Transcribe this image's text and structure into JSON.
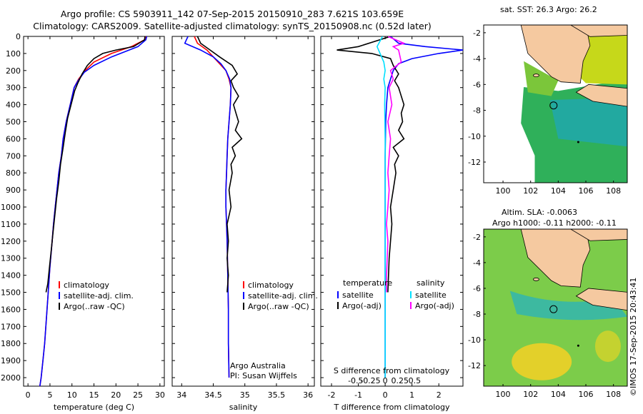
{
  "header": {
    "line1": "Argo profile: CS 5903911_142 07-Sep-2015 20150910_283 7.621S 103.659E",
    "line2": "Climatology: CARS2009. Satellite-adjusted climatology: synTS_20150908.nc (0.52d later)"
  },
  "credit": "©IMOS 17-Sep-2015 20:43:41",
  "colors": {
    "climatology": "#ff0000",
    "satellite": "#0000ff",
    "argo": "#000000",
    "salinity_satellite": "#00e0ff",
    "salinity_argo": "#ff00ff",
    "land": "#f5c9a0"
  },
  "chart_data": [
    {
      "type": "line",
      "id": "temperature",
      "xlabel": "temperature (deg C)",
      "ylabel": "",
      "xlim": [
        -1,
        31
      ],
      "ylim": [
        2050,
        0
      ],
      "xticks": [
        "0",
        "5",
        "10",
        "15",
        "20",
        "25",
        "30"
      ],
      "xtick_values": [
        0,
        5,
        10,
        15,
        20,
        25,
        30
      ],
      "yticks": [
        "0",
        "100",
        "200",
        "300",
        "400",
        "500",
        "600",
        "700",
        "800",
        "900",
        "1000",
        "1100",
        "1200",
        "1300",
        "1400",
        "1500",
        "1600",
        "1700",
        "1800",
        "1900",
        "2000"
      ],
      "ytick_values": [
        0,
        100,
        200,
        300,
        400,
        500,
        600,
        700,
        800,
        900,
        1000,
        1100,
        1200,
        1300,
        1400,
        1500,
        1600,
        1700,
        1800,
        1900,
        2000
      ],
      "legend": [
        "climatology",
        "satellite-adj. clim.",
        "Argo(..raw -QC)"
      ],
      "series": [
        {
          "name": "climatology",
          "color": "#ff0000",
          "x": [
            26.8,
            26.5,
            23.5,
            19,
            15,
            13,
            11.5,
            10.5,
            9.6,
            8.7,
            8.0,
            7.6,
            7.0,
            6.6,
            6.2,
            5.8,
            5.5,
            5.0,
            4.6,
            4.2,
            3.8,
            3.4,
            3.0,
            2.7,
            2.6
          ],
          "y": [
            0,
            20,
            60,
            100,
            150,
            200,
            250,
            300,
            400,
            500,
            600,
            700,
            800,
            900,
            1000,
            1100,
            1200,
            1350,
            1500,
            1650,
            1800,
            1900,
            2000,
            2050,
            2050
          ]
        },
        {
          "name": "satellite-adj. clim.",
          "color": "#0000ff",
          "x": [
            27.0,
            26.8,
            25,
            19,
            15,
            12.8,
            11.4,
            10.5,
            9.6,
            8.7,
            8.0,
            7.6,
            7.0,
            6.6,
            6.2,
            5.8,
            5.5,
            5.0,
            4.6,
            4.2,
            3.8,
            3.4,
            3.0,
            2.7
          ],
          "y": [
            0,
            20,
            60,
            120,
            170,
            210,
            260,
            300,
            400,
            500,
            600,
            700,
            800,
            900,
            1000,
            1100,
            1200,
            1350,
            1500,
            1650,
            1800,
            1900,
            2000,
            2050
          ]
        },
        {
          "name": "Argo(..raw -QC)",
          "color": "#000000",
          "x": [
            26.6,
            26.5,
            24,
            20,
            17,
            15,
            13.5,
            12.3,
            11.4,
            10.6,
            9.8,
            9.0,
            8.5,
            8.0,
            7.4,
            7.0,
            6.5,
            6.1,
            5.7,
            5.3,
            4.9,
            4.5,
            4.1
          ],
          "y": [
            0,
            20,
            60,
            80,
            100,
            130,
            170,
            220,
            270,
            320,
            400,
            480,
            560,
            650,
            750,
            850,
            950,
            1050,
            1150,
            1250,
            1350,
            1450,
            1500
          ]
        }
      ]
    },
    {
      "type": "line",
      "id": "salinity",
      "xlabel": "salinity",
      "ylabel": "",
      "xlim": [
        33.85,
        36.1
      ],
      "ylim": [
        2050,
        0
      ],
      "xticks": [
        "34",
        "34.5",
        "35",
        "35.5",
        "36"
      ],
      "xtick_values": [
        34,
        34.5,
        35,
        35.5,
        36
      ],
      "legend": [
        "climatology",
        "satellite-adj. clim.",
        "Argo(..raw -QC)"
      ],
      "annotations": [
        "Argo Australia",
        "PI: Susan Wijffels"
      ],
      "series": [
        {
          "name": "climatology",
          "color": "#ff0000",
          "x": [
            34.2,
            34.25,
            34.4,
            34.5,
            34.6,
            34.7,
            34.75,
            34.78,
            34.77,
            34.75,
            34.73,
            34.72,
            34.71,
            34.7,
            34.7,
            34.71,
            34.72,
            34.73,
            34.74,
            34.74,
            34.75
          ],
          "y": [
            0,
            40,
            80,
            120,
            160,
            200,
            250,
            300,
            400,
            500,
            600,
            700,
            800,
            900,
            1000,
            1100,
            1200,
            1400,
            1600,
            1800,
            2000
          ]
        },
        {
          "name": "satellite-adj. clim.",
          "color": "#0000ff",
          "x": [
            34.1,
            34.05,
            34.3,
            34.5,
            34.62,
            34.7,
            34.76,
            34.78,
            34.77,
            34.75,
            34.73,
            34.72,
            34.71,
            34.7,
            34.7,
            34.71,
            34.72,
            34.73,
            34.74,
            34.74,
            34.75
          ],
          "y": [
            0,
            40,
            80,
            120,
            160,
            200,
            250,
            300,
            400,
            500,
            600,
            700,
            800,
            900,
            1000,
            1100,
            1200,
            1400,
            1600,
            1800,
            2000
          ]
        },
        {
          "name": "Argo(..raw -QC)",
          "color": "#000000",
          "x": [
            34.25,
            34.3,
            34.45,
            34.6,
            34.8,
            34.88,
            34.78,
            34.82,
            34.9,
            34.82,
            34.86,
            34.9,
            34.85,
            34.95,
            34.8,
            34.85,
            34.78,
            34.8,
            34.75,
            34.78,
            34.72,
            34.74,
            34.72,
            34.74,
            34.72
          ],
          "y": [
            0,
            40,
            80,
            120,
            170,
            220,
            260,
            300,
            350,
            400,
            450,
            500,
            550,
            600,
            650,
            700,
            750,
            800,
            900,
            1000,
            1100,
            1200,
            1300,
            1400,
            1500
          ]
        }
      ]
    },
    {
      "type": "line",
      "id": "difference",
      "xlabel": "T difference from climatology",
      "xlabel_top": "S difference from climatology",
      "ylabel": "",
      "xlim": [
        -2.4,
        2.9
      ],
      "ylim": [
        2050,
        0
      ],
      "xticks": [
        "-2",
        "-1",
        "0",
        "1",
        "2"
      ],
      "xtick_values": [
        -2,
        -1,
        0,
        1,
        2
      ],
      "xticks_top": [
        "-0.5",
        "-0.25",
        "0",
        "0.25",
        "0.5"
      ],
      "xtick_values_top": [
        -0.5,
        -0.25,
        0,
        0.25,
        0.5
      ],
      "legend_left_title": "temperature",
      "legend_right_title": "salinity",
      "legend": [
        "satellite",
        "Argo(-adj)",
        "satellite",
        "Argo(-adj)"
      ],
      "series": [
        {
          "name": "temperature satellite",
          "color": "#0000ff",
          "x": [
            0.2,
            0.5,
            1.5,
            2.9,
            2.0,
            1.0,
            0.5,
            0.3,
            0.1,
            0.05,
            0.02,
            0.0,
            0.0,
            0.0,
            0.0,
            0.0,
            0.0,
            0.0
          ],
          "y": [
            0,
            40,
            60,
            80,
            100,
            130,
            160,
            200,
            300,
            400,
            500,
            700,
            900,
            1100,
            1300,
            1500,
            1800,
            2000
          ]
        },
        {
          "name": "temperature Argo(-adj)",
          "color": "#000000",
          "x": [
            0.2,
            -1.0,
            -1.8,
            -0.5,
            0.2,
            0.3,
            0.5,
            0.35,
            0.5,
            0.7,
            0.6,
            0.65,
            0.5,
            0.7,
            0.3,
            0.5,
            0.35,
            0.4,
            0.3,
            0.2,
            0.25,
            0.15,
            0.1
          ],
          "y": [
            0,
            60,
            80,
            100,
            130,
            170,
            220,
            260,
            300,
            400,
            450,
            500,
            550,
            600,
            650,
            700,
            750,
            800,
            900,
            1000,
            1100,
            1300,
            1500
          ]
        },
        {
          "name": "salinity satellite",
          "color": "#00e0ff",
          "x": [
            -0.1,
            -0.3,
            -0.05,
            0.0,
            -0.05,
            0.0,
            -0.02,
            0.0,
            0.0,
            0.0,
            0.0,
            0.0
          ],
          "y": [
            0,
            60,
            150,
            200,
            250,
            300,
            400,
            600,
            900,
            1200,
            1600,
            2000
          ]
        },
        {
          "name": "salinity Argo(-adj)",
          "color": "#ff00ff",
          "x": [
            0.1,
            0.7,
            0.3,
            0.5,
            0.6,
            0.2,
            0.3,
            0.15,
            0.2,
            0.25,
            0.1,
            0.2,
            0.15,
            0.1,
            0.15,
            0.1,
            0.05,
            0.1,
            0.05,
            0.05
          ],
          "y": [
            0,
            40,
            60,
            80,
            150,
            200,
            250,
            300,
            350,
            400,
            500,
            600,
            700,
            800,
            900,
            1000,
            1100,
            1200,
            1400,
            1500
          ]
        }
      ]
    }
  ],
  "maps": [
    {
      "id": "sst",
      "title": "sat. SST: 26.3 Argo: 26.2",
      "xticks": [
        "100",
        "102",
        "104",
        "106",
        "108"
      ],
      "xtick_values": [
        100,
        102,
        104,
        106,
        108
      ],
      "yticks": [
        "-2",
        "-4",
        "-6",
        "-8",
        "-10",
        "-12"
      ],
      "ytick_values": [
        -2,
        -4,
        -6,
        -8,
        -10,
        -12
      ],
      "xlim": [
        98.6,
        109
      ],
      "ylim": [
        -13.6,
        -1.4
      ],
      "argo_lon": 103.659,
      "argo_lat": -7.621
    },
    {
      "id": "sla",
      "title_line1": "Altim. SLA: -0.0063",
      "title_line2": "Argo h1000: -0.11 h2000: -0.11",
      "xticks": [
        "100",
        "102",
        "104",
        "106",
        "108"
      ],
      "xtick_values": [
        100,
        102,
        104,
        106,
        108
      ],
      "yticks": [
        "-2",
        "-4",
        "-6",
        "-8",
        "-10",
        "-12"
      ],
      "ytick_values": [
        -2,
        -4,
        -6,
        -8,
        -10,
        -12
      ],
      "xlim": [
        98.6,
        109
      ],
      "ylim": [
        -13.6,
        -1.4
      ],
      "argo_lon": 103.659,
      "argo_lat": -7.621
    }
  ]
}
